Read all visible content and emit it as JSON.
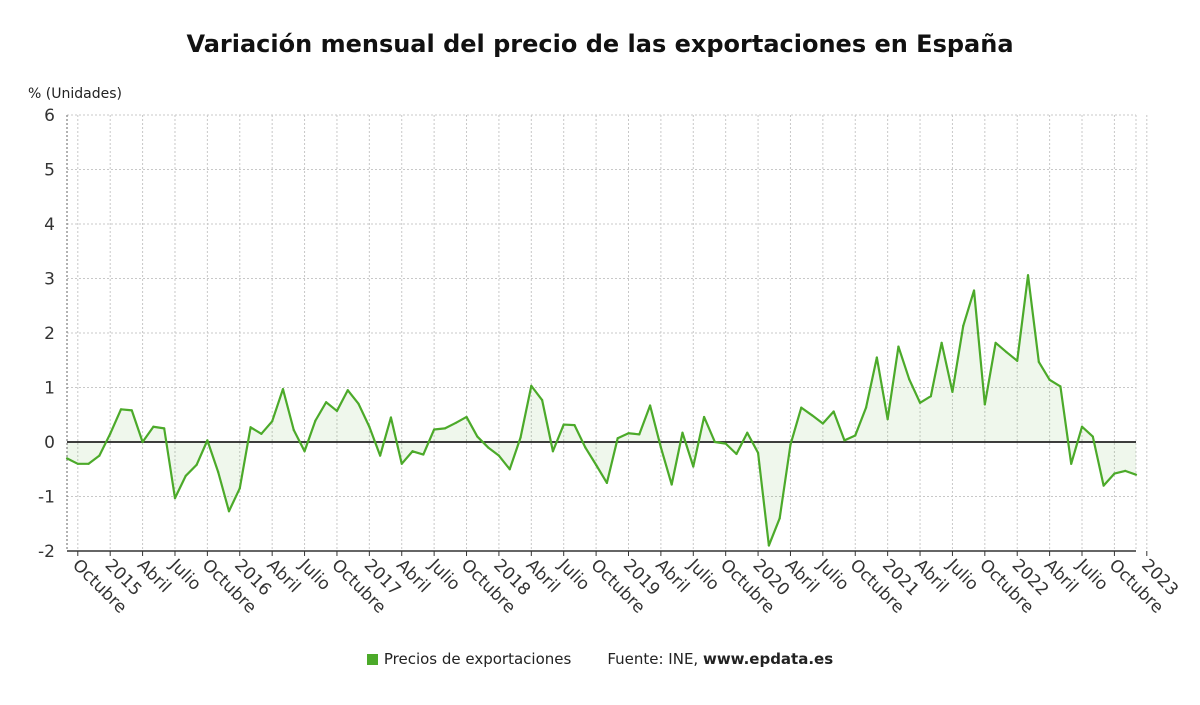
{
  "chart_data": {
    "type": "area",
    "title": "Variación mensual del precio de las exportaciones en España",
    "ylabel": "% (Unidades)",
    "ylim": [
      -2,
      6
    ],
    "yticks": [
      "6",
      "5",
      "4",
      "3",
      "2",
      "1",
      "0",
      "-1",
      "-2"
    ],
    "xticklabels": [
      "Octubre",
      "2015",
      "Abril",
      "Julio",
      "Octubre",
      "2016",
      "Abril",
      "Julio",
      "Octubre",
      "2017",
      "Abril",
      "Julio",
      "Octubre",
      "2018",
      "Abril",
      "Julio",
      "Octubre",
      "2019",
      "Abril",
      "Julio",
      "Octubre",
      "2020",
      "Abril",
      "Julio",
      "Octubre",
      "2021",
      "Abril",
      "Julio",
      "Octubre",
      "2022",
      "Abril",
      "Julio",
      "Octubre",
      "2023"
    ],
    "grid": true,
    "series": [
      {
        "name": "Precios de exportaciones",
        "color": "#4caa2a",
        "values": [
          -0.3,
          -0.4,
          -0.4,
          -0.25,
          0.15,
          0.6,
          0.58,
          0.0,
          0.28,
          0.25,
          -1.03,
          -0.62,
          -0.42,
          0.03,
          -0.55,
          -1.27,
          -0.85,
          0.27,
          0.15,
          0.38,
          0.97,
          0.22,
          -0.17,
          0.39,
          0.73,
          0.57,
          0.95,
          0.7,
          0.28,
          -0.25,
          0.45,
          -0.4,
          -0.17,
          -0.23,
          0.23,
          0.25,
          0.35,
          0.46,
          0.1,
          -0.1,
          -0.25,
          -0.5,
          0.08,
          1.03,
          0.77,
          -0.17,
          0.32,
          0.31,
          -0.1,
          -0.42,
          -0.75,
          0.07,
          0.16,
          0.14,
          0.67,
          -0.1,
          -0.78,
          0.17,
          -0.45,
          0.46,
          0.0,
          -0.03,
          -0.22,
          0.17,
          -0.2,
          -1.9,
          -1.4,
          -0.05,
          0.63,
          0.49,
          0.34,
          0.56,
          0.03,
          0.12,
          0.63,
          1.55,
          0.42,
          1.75,
          1.15,
          0.72,
          0.84,
          1.82,
          0.92,
          2.13,
          2.78,
          0.69,
          1.82,
          1.65,
          1.49,
          3.06,
          1.47,
          1.14,
          1.02,
          -0.4,
          0.28,
          0.1,
          -0.8,
          -0.58,
          -0.53,
          -0.6
        ]
      }
    ]
  },
  "legend": {
    "series_label": "Precios de exportaciones",
    "source_label": "Fuente: INE,",
    "source_site": "www.epdata.es"
  }
}
